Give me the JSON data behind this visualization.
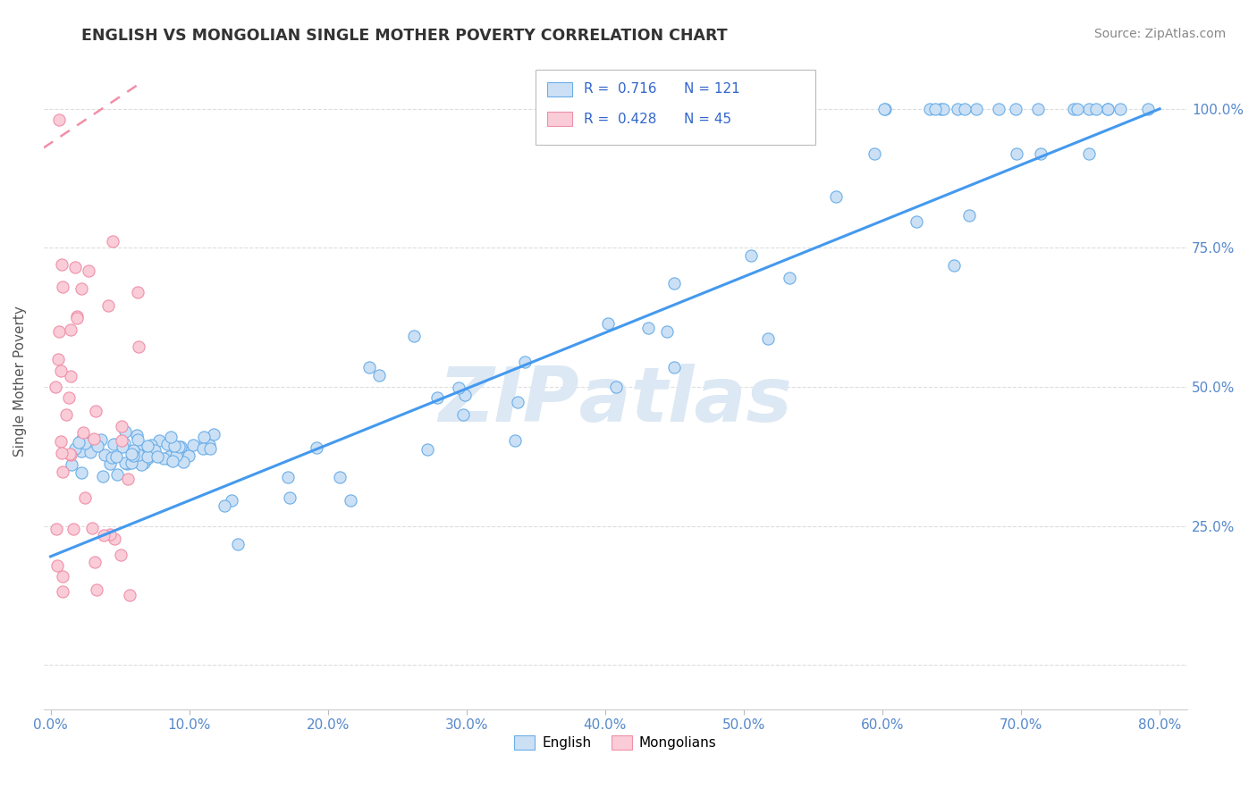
{
  "title": "ENGLISH VS MONGOLIAN SINGLE MOTHER POVERTY CORRELATION CHART",
  "source": "Source: ZipAtlas.com",
  "ylabel": "Single Mother Poverty",
  "legend_english": "English",
  "legend_mongolian": "Mongolians",
  "R_english": 0.716,
  "N_english": 121,
  "R_mongolian": 0.428,
  "N_mongolian": 45,
  "english_fill": "#cce0f5",
  "english_edge": "#6aaee8",
  "mongolian_fill": "#f9ccd8",
  "mongolian_edge": "#f090a8",
  "english_line_color": "#4499ee",
  "mongolian_line_color": "#f090a8",
  "title_color": "#333333",
  "source_color": "#888888",
  "tick_color": "#5588cc",
  "watermark_color": "#dce8f4",
  "background_color": "#ffffff",
  "grid_color": "#dddddd",
  "legend_edge_color": "#bbbbbb",
  "legend_R_color": "#3366cc",
  "xlim": [
    -0.005,
    0.82
  ],
  "ylim": [
    -0.08,
    1.1
  ],
  "xticks": [
    0.0,
    0.1,
    0.2,
    0.3,
    0.4,
    0.5,
    0.6,
    0.7,
    0.8
  ],
  "yticks": [
    0.0,
    0.25,
    0.5,
    0.75,
    1.0
  ],
  "ytick_labels": [
    "",
    "25.0%",
    "50.0%",
    "75.0%",
    "100.0%"
  ],
  "eng_line_x": [
    0.0,
    0.8
  ],
  "eng_line_y": [
    0.195,
    1.0
  ],
  "mong_line_x": [
    -0.005,
    0.067
  ],
  "mong_line_y": [
    0.93,
    1.05
  ]
}
